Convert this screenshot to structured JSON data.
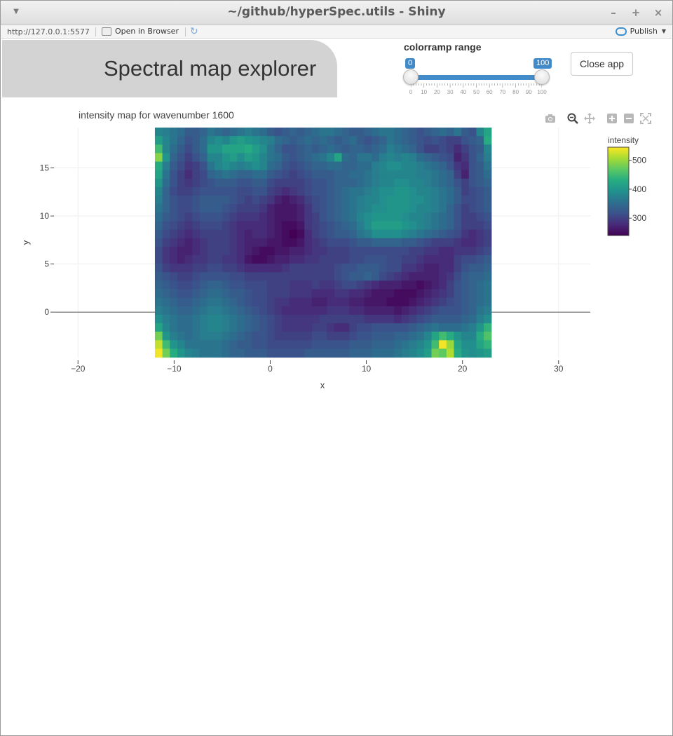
{
  "window": {
    "title": "~/github/hyperSpec.utils - Shiny",
    "minimize": "–",
    "maximize": "+",
    "close": "×"
  },
  "addressbar": {
    "url": "http://127.0.0.1:5577",
    "open_in_browser": "Open in Browser",
    "publish": "Publish"
  },
  "app": {
    "title": "Spectral map explorer",
    "close_label": "Close app",
    "slider": {
      "label": "colorramp range",
      "min": 0,
      "max": 100,
      "value_low": 0,
      "value_high": 100,
      "low_label": "0",
      "high_label": "100",
      "tick_labels": [
        "0",
        "10",
        "20",
        "30",
        "40",
        "50",
        "60",
        "70",
        "80",
        "90",
        "100"
      ]
    }
  },
  "chart_data": {
    "type": "heatmap",
    "title": "intensity map for wavenumber 1600",
    "xlabel": "x",
    "ylabel": "y",
    "xlim": [
      -22.5,
      33.3
    ],
    "ylim": [
      -4.8,
      19.2
    ],
    "x_ticks": [
      "−20",
      "−10",
      "0",
      "10",
      "20",
      "30"
    ],
    "x_tick_values": [
      -20,
      -10,
      0,
      10,
      20,
      30
    ],
    "y_ticks": [
      "0",
      "5",
      "10",
      "15"
    ],
    "y_tick_values": [
      0,
      5,
      10,
      15
    ],
    "x_range": [
      -12,
      23
    ],
    "y_range": [
      -4.7,
      19.2
    ],
    "grid": true,
    "colorbar": {
      "title": "intensity",
      "ticks": [
        "500",
        "400",
        "300"
      ],
      "tick_values": [
        500,
        400,
        300
      ],
      "min": 240,
      "max": 545,
      "colorscale": "viridis"
    },
    "rows": [
      [
        380,
        370,
        360,
        350,
        330,
        330,
        340,
        360,
        350,
        340,
        350,
        360,
        370,
        360,
        350,
        330,
        320,
        330,
        340,
        330,
        340,
        350,
        360,
        360,
        350,
        340,
        330,
        330,
        340,
        350,
        360,
        360,
        350,
        340,
        330,
        320,
        330,
        340,
        350,
        340,
        360,
        330,
        320,
        380,
        420
      ],
      [
        410,
        380,
        360,
        340,
        320,
        330,
        350,
        380,
        390,
        380,
        400,
        410,
        400,
        390,
        380,
        370,
        350,
        340,
        330,
        340,
        350,
        340,
        350,
        340,
        330,
        340,
        350,
        330,
        320,
        330,
        340,
        360,
        350,
        340,
        330,
        320,
        310,
        320,
        310,
        300,
        300,
        320,
        330,
        340,
        430
      ],
      [
        450,
        380,
        350,
        330,
        310,
        330,
        350,
        400,
        400,
        420,
        420,
        420,
        430,
        410,
        390,
        360,
        340,
        320,
        320,
        330,
        340,
        330,
        340,
        350,
        340,
        330,
        340,
        340,
        330,
        340,
        350,
        370,
        360,
        350,
        340,
        320,
        300,
        300,
        310,
        300,
        280,
        300,
        320,
        330,
        380
      ],
      [
        490,
        400,
        340,
        320,
        300,
        320,
        340,
        380,
        380,
        400,
        410,
        390,
        410,
        400,
        380,
        360,
        350,
        330,
        320,
        330,
        340,
        350,
        360,
        380,
        420,
        350,
        340,
        360,
        360,
        350,
        370,
        380,
        370,
        380,
        370,
        350,
        340,
        330,
        320,
        310,
        270,
        290,
        320,
        340,
        370
      ],
      [
        430,
        370,
        330,
        310,
        290,
        300,
        320,
        360,
        380,
        390,
        380,
        370,
        380,
        390,
        380,
        350,
        340,
        320,
        310,
        320,
        330,
        340,
        340,
        350,
        350,
        340,
        340,
        350,
        350,
        370,
        380,
        390,
        390,
        380,
        380,
        370,
        360,
        350,
        340,
        320,
        290,
        280,
        320,
        330,
        360
      ],
      [
        420,
        360,
        320,
        300,
        280,
        300,
        310,
        340,
        350,
        360,
        350,
        340,
        340,
        350,
        350,
        330,
        320,
        310,
        300,
        310,
        320,
        330,
        330,
        330,
        340,
        340,
        350,
        350,
        360,
        370,
        380,
        380,
        380,
        380,
        380,
        370,
        370,
        360,
        350,
        340,
        300,
        270,
        320,
        330,
        350
      ],
      [
        400,
        350,
        320,
        300,
        290,
        300,
        310,
        320,
        330,
        330,
        330,
        320,
        320,
        330,
        330,
        310,
        300,
        300,
        300,
        300,
        310,
        320,
        320,
        330,
        340,
        340,
        340,
        350,
        360,
        370,
        380,
        380,
        390,
        390,
        380,
        380,
        370,
        360,
        350,
        340,
        320,
        300,
        320,
        330,
        340
      ],
      [
        380,
        340,
        310,
        300,
        300,
        310,
        320,
        320,
        320,
        320,
        320,
        310,
        310,
        320,
        320,
        300,
        290,
        280,
        290,
        300,
        310,
        320,
        320,
        330,
        340,
        350,
        360,
        360,
        370,
        380,
        390,
        390,
        400,
        400,
        390,
        380,
        380,
        370,
        360,
        350,
        330,
        300,
        310,
        320,
        330
      ],
      [
        370,
        340,
        320,
        310,
        310,
        320,
        330,
        330,
        330,
        330,
        320,
        310,
        300,
        310,
        300,
        290,
        270,
        260,
        270,
        280,
        300,
        310,
        320,
        330,
        340,
        350,
        360,
        370,
        380,
        380,
        390,
        400,
        400,
        400,
        390,
        390,
        380,
        370,
        360,
        350,
        330,
        310,
        310,
        320,
        330
      ],
      [
        360,
        340,
        320,
        310,
        310,
        320,
        330,
        330,
        330,
        320,
        310,
        300,
        300,
        300,
        290,
        270,
        260,
        260,
        260,
        270,
        290,
        310,
        320,
        330,
        340,
        350,
        360,
        370,
        380,
        390,
        390,
        400,
        400,
        400,
        390,
        380,
        380,
        370,
        360,
        340,
        320,
        300,
        310,
        320,
        330
      ],
      [
        350,
        330,
        320,
        310,
        300,
        310,
        320,
        320,
        320,
        310,
        300,
        290,
        290,
        290,
        280,
        270,
        260,
        260,
        260,
        270,
        290,
        300,
        320,
        330,
        340,
        350,
        360,
        380,
        390,
        400,
        400,
        400,
        400,
        390,
        380,
        380,
        370,
        360,
        350,
        340,
        320,
        300,
        300,
        310,
        320
      ],
      [
        340,
        320,
        310,
        300,
        290,
        300,
        310,
        310,
        310,
        300,
        290,
        280,
        280,
        280,
        280,
        270,
        260,
        250,
        250,
        260,
        290,
        300,
        310,
        320,
        330,
        340,
        350,
        370,
        390,
        410,
        410,
        410,
        410,
        400,
        390,
        380,
        370,
        360,
        350,
        340,
        320,
        300,
        300,
        300,
        310
      ],
      [
        330,
        310,
        300,
        290,
        280,
        290,
        300,
        300,
        300,
        300,
        290,
        280,
        270,
        280,
        280,
        270,
        260,
        250,
        240,
        250,
        280,
        300,
        310,
        320,
        330,
        330,
        340,
        360,
        370,
        390,
        390,
        390,
        390,
        380,
        370,
        360,
        350,
        340,
        330,
        320,
        310,
        290,
        280,
        290,
        300
      ],
      [
        320,
        300,
        290,
        280,
        270,
        280,
        290,
        300,
        300,
        300,
        290,
        280,
        270,
        270,
        270,
        260,
        260,
        250,
        250,
        260,
        280,
        290,
        300,
        310,
        310,
        310,
        320,
        330,
        330,
        340,
        340,
        340,
        340,
        330,
        330,
        320,
        310,
        300,
        300,
        300,
        290,
        280,
        280,
        290,
        300
      ],
      [
        310,
        290,
        280,
        270,
        270,
        280,
        290,
        300,
        300,
        300,
        290,
        280,
        270,
        260,
        250,
        250,
        260,
        260,
        270,
        270,
        280,
        290,
        290,
        300,
        300,
        300,
        310,
        310,
        310,
        310,
        310,
        310,
        310,
        310,
        300,
        300,
        290,
        290,
        280,
        280,
        290,
        290,
        290,
        300,
        310
      ],
      [
        310,
        290,
        280,
        270,
        280,
        290,
        290,
        300,
        300,
        290,
        290,
        280,
        260,
        250,
        250,
        260,
        270,
        270,
        280,
        280,
        290,
        290,
        300,
        300,
        300,
        300,
        310,
        310,
        320,
        320,
        320,
        310,
        310,
        300,
        300,
        290,
        280,
        280,
        280,
        280,
        300,
        310,
        310,
        320,
        330
      ],
      [
        320,
        300,
        290,
        290,
        290,
        300,
        300,
        310,
        310,
        300,
        300,
        290,
        280,
        280,
        280,
        280,
        280,
        290,
        300,
        300,
        300,
        300,
        300,
        300,
        310,
        320,
        320,
        330,
        330,
        330,
        320,
        310,
        310,
        290,
        290,
        280,
        270,
        270,
        280,
        280,
        300,
        320,
        330,
        330,
        340
      ],
      [
        330,
        320,
        310,
        300,
        300,
        310,
        320,
        320,
        320,
        320,
        310,
        310,
        300,
        300,
        300,
        300,
        300,
        300,
        300,
        300,
        300,
        300,
        300,
        300,
        310,
        320,
        330,
        330,
        340,
        330,
        310,
        300,
        290,
        280,
        270,
        270,
        270,
        270,
        280,
        290,
        310,
        330,
        340,
        340,
        350
      ],
      [
        340,
        330,
        320,
        310,
        310,
        320,
        330,
        340,
        340,
        330,
        320,
        320,
        310,
        310,
        310,
        300,
        300,
        300,
        290,
        290,
        290,
        300,
        290,
        290,
        300,
        310,
        310,
        300,
        290,
        280,
        270,
        270,
        270,
        260,
        260,
        250,
        260,
        270,
        280,
        300,
        320,
        330,
        340,
        350,
        360
      ],
      [
        350,
        340,
        330,
        320,
        320,
        330,
        340,
        350,
        350,
        340,
        330,
        330,
        320,
        310,
        310,
        300,
        300,
        300,
        290,
        290,
        290,
        280,
        280,
        280,
        290,
        290,
        280,
        280,
        270,
        260,
        260,
        260,
        250,
        250,
        250,
        260,
        270,
        280,
        290,
        300,
        320,
        330,
        340,
        350,
        360
      ],
      [
        360,
        350,
        340,
        330,
        330,
        340,
        350,
        360,
        360,
        350,
        340,
        330,
        320,
        310,
        310,
        300,
        290,
        290,
        280,
        280,
        280,
        270,
        270,
        280,
        280,
        280,
        270,
        270,
        260,
        260,
        260,
        250,
        250,
        250,
        260,
        270,
        280,
        290,
        300,
        310,
        320,
        330,
        340,
        350,
        360
      ],
      [
        370,
        360,
        350,
        340,
        340,
        350,
        360,
        370,
        370,
        360,
        350,
        340,
        330,
        320,
        310,
        300,
        290,
        280,
        280,
        280,
        280,
        280,
        280,
        290,
        290,
        290,
        280,
        280,
        270,
        270,
        270,
        270,
        260,
        270,
        280,
        290,
        300,
        310,
        320,
        320,
        320,
        330,
        340,
        360,
        370
      ],
      [
        390,
        370,
        360,
        350,
        350,
        360,
        370,
        380,
        380,
        370,
        360,
        350,
        340,
        330,
        320,
        310,
        300,
        290,
        290,
        290,
        290,
        290,
        300,
        300,
        300,
        300,
        300,
        300,
        290,
        290,
        290,
        290,
        280,
        290,
        300,
        310,
        320,
        330,
        330,
        330,
        330,
        340,
        350,
        370,
        390
      ],
      [
        420,
        380,
        360,
        350,
        350,
        360,
        370,
        380,
        380,
        370,
        360,
        350,
        340,
        330,
        320,
        310,
        300,
        290,
        290,
        290,
        290,
        300,
        300,
        290,
        280,
        280,
        300,
        310,
        310,
        320,
        320,
        320,
        320,
        320,
        330,
        340,
        350,
        360,
        350,
        350,
        350,
        360,
        370,
        400,
        440
      ],
      [
        480,
        400,
        370,
        360,
        350,
        360,
        370,
        370,
        370,
        360,
        350,
        340,
        330,
        320,
        320,
        310,
        300,
        300,
        300,
        300,
        300,
        310,
        310,
        300,
        300,
        300,
        310,
        320,
        320,
        330,
        330,
        330,
        340,
        340,
        350,
        360,
        380,
        420,
        450,
        430,
        400,
        380,
        380,
        430,
        460
      ],
      [
        520,
        450,
        400,
        380,
        360,
        360,
        360,
        360,
        360,
        350,
        340,
        330,
        330,
        320,
        320,
        310,
        310,
        310,
        310,
        310,
        310,
        320,
        320,
        320,
        320,
        320,
        330,
        330,
        330,
        340,
        340,
        340,
        350,
        360,
        370,
        380,
        400,
        450,
        540,
        500,
        420,
        390,
        390,
        420,
        440
      ],
      [
        540,
        480,
        430,
        400,
        380,
        370,
        360,
        360,
        360,
        350,
        340,
        340,
        330,
        330,
        330,
        320,
        320,
        320,
        320,
        320,
        330,
        330,
        330,
        330,
        330,
        330,
        340,
        340,
        340,
        350,
        350,
        350,
        360,
        370,
        380,
        390,
        410,
        480,
        470,
        510,
        430,
        400,
        390,
        400,
        410
      ]
    ]
  }
}
